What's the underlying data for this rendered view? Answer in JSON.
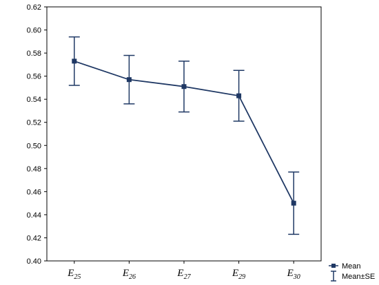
{
  "chart_data": {
    "type": "line",
    "categories": [
      {
        "base": "E",
        "sub": "25"
      },
      {
        "base": "E",
        "sub": "26"
      },
      {
        "base": "E",
        "sub": "27"
      },
      {
        "base": "E",
        "sub": "29"
      },
      {
        "base": "E",
        "sub": "30"
      }
    ],
    "series": [
      {
        "name": "Mean",
        "values": [
          0.573,
          0.557,
          0.551,
          0.543,
          0.45
        ],
        "se": [
          0.021,
          0.021,
          0.022,
          0.022,
          0.027
        ]
      }
    ],
    "error_bar_label": "Mean±SE",
    "ylim": [
      0.4,
      0.62
    ],
    "yticks": [
      "0.40",
      "0.42",
      "0.44",
      "0.46",
      "0.48",
      "0.50",
      "0.52",
      "0.54",
      "0.56",
      "0.58",
      "0.60",
      "0.62"
    ],
    "title": "",
    "xlabel": "",
    "ylabel": "",
    "grid": false,
    "legend_position": "bottom-right",
    "line_color": "#1f3864"
  }
}
